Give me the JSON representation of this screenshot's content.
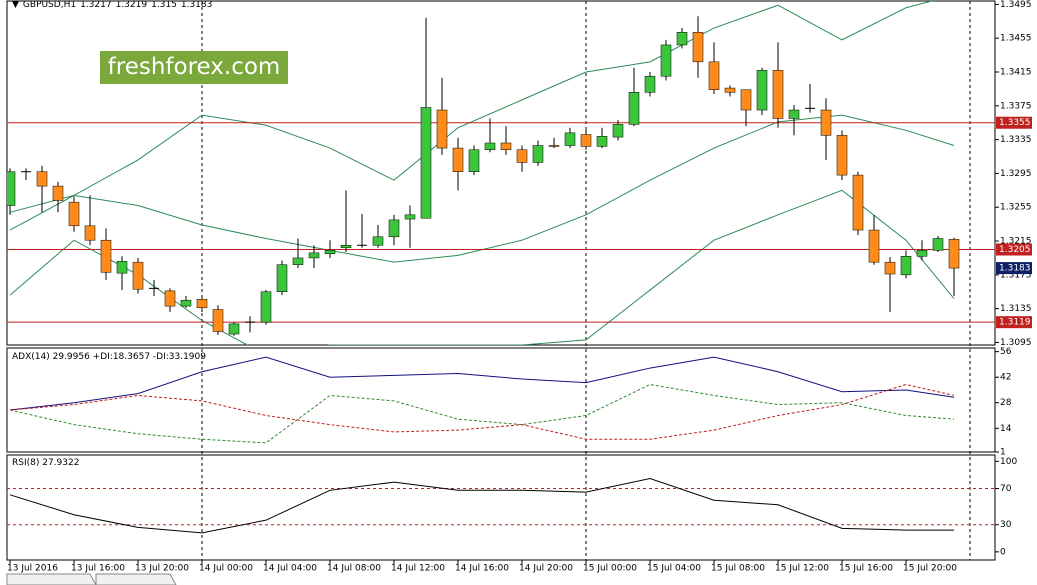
{
  "chart_data": {
    "type": "candlestick",
    "symbol": "GBPUSD,H1",
    "watermark": "freshforex.com",
    "bull_color": "#3cc43c",
    "bear_color": "#ff8c1a",
    "ylim": [
      1.3092,
      1.3499
    ],
    "yticks": [
      1.3495,
      1.3455,
      1.3415,
      1.3375,
      1.3335,
      1.3295,
      1.3255,
      1.3215,
      1.3175,
      1.3135,
      1.3095
    ],
    "categories": [
      "13 Jul 2016",
      null,
      null,
      null,
      "13 Jul 16:00",
      null,
      null,
      null,
      "13 Jul 20:00",
      null,
      null,
      null,
      "14 Jul 00:00",
      null,
      null,
      null,
      "14 Jul 04:00",
      null,
      null,
      null,
      "14 Jul 08:00",
      null,
      null,
      null,
      "14 Jul 12:00",
      null,
      null,
      null,
      "14 Jul 16:00",
      null,
      null,
      null,
      "14 Jul 20:00",
      null,
      null,
      null,
      "15 Jul 00:00",
      null,
      null,
      null,
      "15 Jul 04:00",
      null,
      null,
      null,
      "15 Jul 08:00",
      null,
      null,
      null,
      "15 Jul 12:00",
      null,
      null,
      null,
      "15 Jul 16:00",
      null,
      null,
      null,
      "15 Jul 20:00",
      null,
      null,
      null
    ],
    "candles": [
      [
        1.3257,
        1.3301,
        1.3246,
        1.3297
      ],
      [
        1.3297,
        1.3301,
        1.3287,
        1.3297
      ],
      [
        1.3297,
        1.3304,
        1.3249,
        1.328
      ],
      [
        1.328,
        1.3285,
        1.3249,
        1.3263
      ],
      [
        1.3261,
        1.3268,
        1.3226,
        1.3233
      ],
      [
        1.3233,
        1.3269,
        1.321,
        1.3216
      ],
      [
        1.3216,
        1.323,
        1.3169,
        1.3178
      ],
      [
        1.3177,
        1.3197,
        1.3157,
        1.3191
      ],
      [
        1.319,
        1.3195,
        1.3153,
        1.3158
      ],
      [
        1.3159,
        1.3169,
        1.315,
        1.3159
      ],
      [
        1.3156,
        1.3159,
        1.3131,
        1.3138
      ],
      [
        1.3138,
        1.315,
        1.3136,
        1.3145
      ],
      [
        1.3146,
        1.315,
        1.3131,
        1.3136
      ],
      [
        1.3134,
        1.3139,
        1.3104,
        1.3108
      ],
      [
        1.3105,
        1.3119,
        1.3103,
        1.3117
      ],
      [
        1.3119,
        1.3126,
        1.3107,
        1.3119
      ],
      [
        1.3119,
        1.3157,
        1.3116,
        1.3155
      ],
      [
        1.3155,
        1.3192,
        1.3151,
        1.3187
      ],
      [
        1.3187,
        1.3218,
        1.3183,
        1.3195
      ],
      [
        1.3195,
        1.321,
        1.3183,
        1.3201
      ],
      [
        1.32,
        1.3216,
        1.3195,
        1.3204
      ],
      [
        1.3207,
        1.3275,
        1.3202,
        1.321
      ],
      [
        1.321,
        1.3247,
        1.3207,
        1.321
      ],
      [
        1.321,
        1.3234,
        1.3207,
        1.322
      ],
      [
        1.322,
        1.3246,
        1.321,
        1.324
      ],
      [
        1.3241,
        1.3257,
        1.3207,
        1.3246
      ],
      [
        1.3242,
        1.3479,
        1.3242,
        1.3373
      ],
      [
        1.337,
        1.3408,
        1.3317,
        1.3325
      ],
      [
        1.3325,
        1.3337,
        1.3275,
        1.3297
      ],
      [
        1.3297,
        1.3328,
        1.3293,
        1.3323
      ],
      [
        1.3323,
        1.336,
        1.332,
        1.3331
      ],
      [
        1.3331,
        1.3351,
        1.3317,
        1.3323
      ],
      [
        1.3323,
        1.3328,
        1.3297,
        1.3308
      ],
      [
        1.3308,
        1.3334,
        1.3304,
        1.3328
      ],
      [
        1.3328,
        1.3337,
        1.3325,
        1.3327
      ],
      [
        1.3328,
        1.3349,
        1.3325,
        1.3343
      ],
      [
        1.3341,
        1.3349,
        1.3323,
        1.3327
      ],
      [
        1.3327,
        1.3349,
        1.3325,
        1.3339
      ],
      [
        1.3338,
        1.3358,
        1.3334,
        1.3353
      ],
      [
        1.3353,
        1.342,
        1.3351,
        1.3391
      ],
      [
        1.3391,
        1.3415,
        1.3386,
        1.341
      ],
      [
        1.341,
        1.3453,
        1.3405,
        1.3447
      ],
      [
        1.3447,
        1.3467,
        1.3443,
        1.3462
      ],
      [
        1.3462,
        1.3481,
        1.3408,
        1.3427
      ],
      [
        1.3427,
        1.345,
        1.3389,
        1.3394
      ],
      [
        1.3396,
        1.3399,
        1.3386,
        1.3391
      ],
      [
        1.3394,
        1.3394,
        1.3351,
        1.337
      ],
      [
        1.337,
        1.342,
        1.3364,
        1.3417
      ],
      [
        1.3417,
        1.345,
        1.3349,
        1.336
      ],
      [
        1.336,
        1.3376,
        1.334,
        1.337
      ],
      [
        1.3372,
        1.3401,
        1.3367,
        1.3372
      ],
      [
        1.337,
        1.3384,
        1.3311,
        1.334
      ],
      [
        1.334,
        1.3346,
        1.3287,
        1.3293
      ],
      [
        1.3293,
        1.3297,
        1.3222,
        1.3228
      ],
      [
        1.3228,
        1.3246,
        1.3187,
        1.319
      ],
      [
        1.319,
        1.3196,
        1.3131,
        1.3176
      ],
      [
        1.3175,
        1.3204,
        1.3171,
        1.3197
      ],
      [
        1.3197,
        1.3216,
        1.3192,
        1.3204
      ],
      [
        1.3204,
        1.3221,
        1.3202,
        1.3218
      ],
      [
        1.3217,
        1.3219,
        1.315,
        1.3183
      ]
    ],
    "bands": {
      "color": "#2e8b57",
      "x": [
        0,
        4,
        8,
        12,
        16,
        20,
        24,
        28,
        32,
        36,
        40,
        44,
        48,
        52,
        56,
        59
      ],
      "series": [
        {
          "values": [
            1.3249,
            1.3269,
            1.3311,
            1.3364,
            1.3352,
            1.3325,
            1.3287,
            1.3349,
            1.3382,
            1.3415,
            1.3427,
            1.3467,
            1.3494,
            1.3453,
            1.3491,
            1.3506
          ]
        },
        {
          "values": [
            1.3228,
            1.3269,
            1.3257,
            1.3234,
            1.3218,
            1.3204,
            1.319,
            1.3198,
            1.3216,
            1.3246,
            1.3287,
            1.3325,
            1.3356,
            1.3364,
            1.3346,
            1.3328
          ]
        },
        {
          "values": [
            1.3151,
            1.3216,
            1.3175,
            1.3121,
            1.308,
            1.3092,
            1.3092,
            1.3092,
            1.3092,
            1.3098,
            1.3157,
            1.3216,
            1.3246,
            1.3275,
            1.3216,
            1.3147
          ]
        }
      ]
    },
    "levels": {
      "color": "#c0201e",
      "values": [
        1.3355,
        1.3205,
        1.3119
      ]
    },
    "price_color": "#0f1f66",
    "indicators": [
      {
        "label": "ADX(14) 29.9956 +DI:18.3657 -DI:33.1909",
        "ylim": [
          1,
          58
        ],
        "yticks": [
          56,
          42,
          28,
          14,
          1
        ],
        "x": [
          0,
          4,
          8,
          12,
          16,
          20,
          24,
          28,
          32,
          36,
          40,
          44,
          48,
          52,
          56,
          59
        ],
        "series": [
          {
            "color": "#101080",
            "style": "solid",
            "values": [
              24,
              28,
              33,
              45,
              53,
              42,
              43,
              44,
              41,
              39,
              47,
              53,
              45,
              34,
              35,
              31
            ]
          },
          {
            "color": "#2e8b2e",
            "style": "dashed",
            "values": [
              24,
              16,
              11,
              8,
              6,
              32,
              29,
              19,
              16,
              21,
              38,
              32,
              27,
              28,
              21,
              19
            ]
          },
          {
            "color": "#c0201e",
            "style": "dashed",
            "values": [
              24,
              27,
              32,
              29,
              21,
              16,
              12,
              13,
              16,
              8,
              8,
              13,
              21,
              27,
              38,
              32
            ]
          }
        ]
      },
      {
        "label": "RSI(8) 27.9322",
        "ylim": [
          -9,
          107
        ],
        "yticks": [
          100,
          70,
          30,
          0
        ],
        "levels": [
          70,
          30
        ],
        "level_color": "#c0201e",
        "x": [
          0,
          4,
          8,
          12,
          16,
          20,
          24,
          28,
          32,
          36,
          40,
          44,
          48,
          52,
          56,
          59
        ],
        "series": [
          {
            "color": "#000000",
            "style": "solid",
            "values": [
              63,
              41,
              27,
              21,
              35,
              68,
              77,
              68,
              68,
              66,
              81,
              57,
              52,
              26,
              24,
              24
            ]
          }
        ]
      }
    ]
  }
}
